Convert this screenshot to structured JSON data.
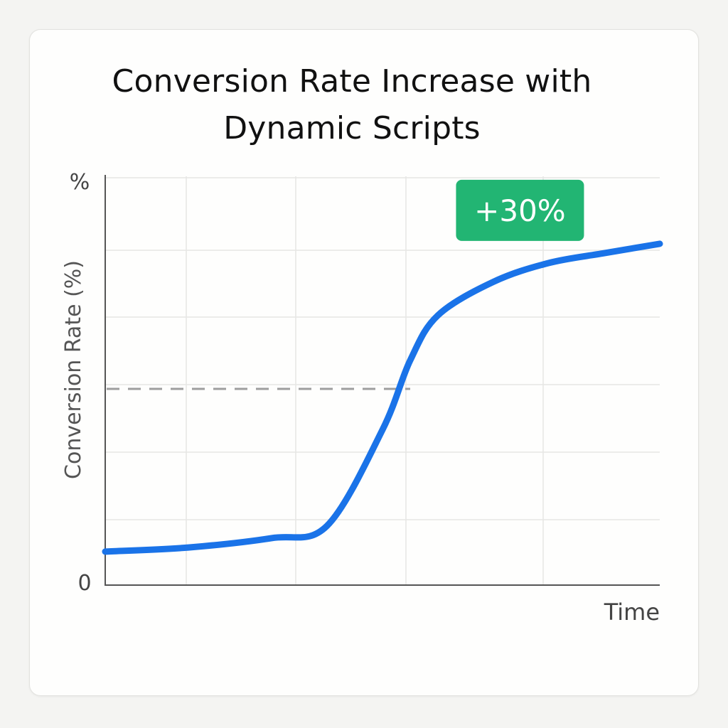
{
  "chart_data": {
    "type": "line",
    "title_lines": [
      "Conversion Rate Increase with",
      "Dynamic Scripts"
    ],
    "xlabel": "Time",
    "ylabel": "Conversion Rate (%)",
    "y_unit_label": "%",
    "y_zero_label": "0",
    "xlim": [
      0,
      10
    ],
    "ylim": [
      0,
      10
    ],
    "grid": true,
    "series": [
      {
        "color": "#1a73e8",
        "x": [
          0,
          1.5,
          3,
          4,
          5,
          5.5,
          6,
          7,
          8,
          9,
          10
        ],
        "y": [
          0.82,
          0.92,
          1.15,
          1.45,
          3.8,
          5.5,
          6.6,
          7.42,
          7.88,
          8.12,
          8.35
        ]
      }
    ],
    "reference_line": {
      "y": 4.8,
      "x_end": 5.5,
      "style": "dashed",
      "color": "#9e9e9e"
    },
    "annotation": {
      "text": "+30%",
      "x": 7.48,
      "y": 8.35,
      "bg": "#22b573",
      "fg": "#ffffff"
    }
  }
}
